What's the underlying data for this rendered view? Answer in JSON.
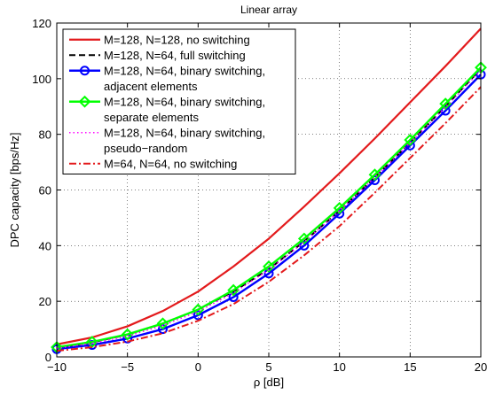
{
  "chart_data": {
    "type": "line",
    "title": "Linear array",
    "xlabel": "ρ [dB]",
    "ylabel": "DPC capacity [bps/Hz]",
    "xlim": [
      -10,
      20
    ],
    "ylim": [
      0,
      120
    ],
    "xticks": [
      -10,
      -5,
      0,
      5,
      10,
      15,
      20
    ],
    "yticks": [
      0,
      20,
      40,
      60,
      80,
      100,
      120
    ],
    "grid": true,
    "legend_position": "top-left",
    "x": [
      -10,
      -7.5,
      -5,
      -2.5,
      0,
      2.5,
      5,
      7.5,
      10,
      12.5,
      15,
      17.5,
      20
    ],
    "series": [
      {
        "name": "M=128, N=128, no switching",
        "legend_lines": [
          "M=128, N=128, no switching"
        ],
        "values": [
          4.5,
          7.0,
          11.0,
          16.5,
          23.5,
          32.5,
          42.5,
          54.0,
          66.0,
          78.5,
          91.5,
          104.5,
          118.0
        ],
        "color": "#e31a1c",
        "dash": "",
        "marker": "none",
        "width": 2.2
      },
      {
        "name": "M=128, N=64, full switching",
        "legend_lines": [
          "M=128, N=64, full switching"
        ],
        "values": [
          3.3,
          5.2,
          8.0,
          12.0,
          17.0,
          23.5,
          31.5,
          41.5,
          52.5,
          64.5,
          77.0,
          90.0,
          103.5
        ],
        "color": "#000000",
        "dash": "7,4",
        "marker": "none",
        "width": 2
      },
      {
        "name": "M=128, N=64, binary switching, adjacent elements",
        "legend_lines": [
          "M=128, N=64, binary switching,",
          "adjacent elements"
        ],
        "values": [
          2.8,
          4.3,
          6.6,
          10.0,
          15.0,
          21.5,
          30.0,
          40.0,
          51.5,
          63.5,
          76.0,
          88.5,
          101.5
        ],
        "color": "#0000ff",
        "dash": "",
        "marker": "circle",
        "width": 2.4
      },
      {
        "name": "M=128, N=64, binary switching, separate elements",
        "legend_lines": [
          "M=128, N=64, binary switching,",
          "separate elements"
        ],
        "values": [
          3.5,
          5.4,
          8.1,
          12.0,
          17.0,
          24.0,
          32.5,
          42.5,
          53.5,
          65.5,
          78.0,
          91.0,
          104.0
        ],
        "color": "#00ff00",
        "dash": "",
        "marker": "diamond",
        "width": 2.4
      },
      {
        "name": "M=128, N=64, binary switching, pseudo-random",
        "legend_lines": [
          "M=128, N=64, binary switching,",
          "pseudo−random"
        ],
        "values": [
          3.1,
          4.9,
          7.5,
          11.3,
          16.3,
          23.0,
          31.3,
          41.3,
          52.5,
          64.5,
          77.0,
          89.8,
          103.0
        ],
        "color": "#ff00ff",
        "dash": "1.5,3",
        "marker": "none",
        "width": 1.6
      },
      {
        "name": "M=64, N=64, no switching",
        "legend_lines": [
          "M=64, N=64, no switching"
        ],
        "values": [
          2.2,
          3.5,
          5.5,
          8.5,
          13.0,
          19.0,
          27.0,
          36.5,
          47.0,
          59.0,
          71.5,
          84.0,
          97.0
        ],
        "color": "#e31a1c",
        "dash": "8,3,2,3",
        "marker": "none",
        "width": 2
      }
    ]
  }
}
